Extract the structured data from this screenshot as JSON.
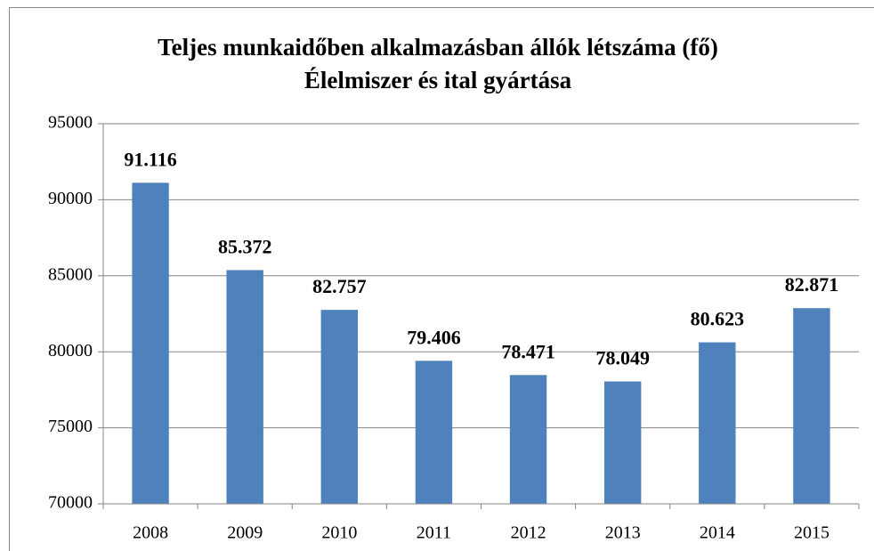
{
  "chart_data": {
    "type": "bar",
    "title": "Teljes munkaidőben alkalmazásban állók létszáma (fő)",
    "subtitle": "Élelmiszer és ital gyártása",
    "categories": [
      "2008",
      "2009",
      "2010",
      "2011",
      "2012",
      "2013",
      "2014",
      "2015"
    ],
    "values": [
      91116,
      85372,
      82757,
      79406,
      78471,
      78049,
      80623,
      82871
    ],
    "value_labels": [
      "91.116",
      "85.372",
      "82.757",
      "79.406",
      "78.471",
      "78.049",
      "80.623",
      "82.871"
    ],
    "color": "#4f81bd",
    "ylim": [
      70000,
      95000
    ],
    "yticks": [
      70000,
      75000,
      80000,
      85000,
      90000,
      95000
    ],
    "grid": true
  }
}
